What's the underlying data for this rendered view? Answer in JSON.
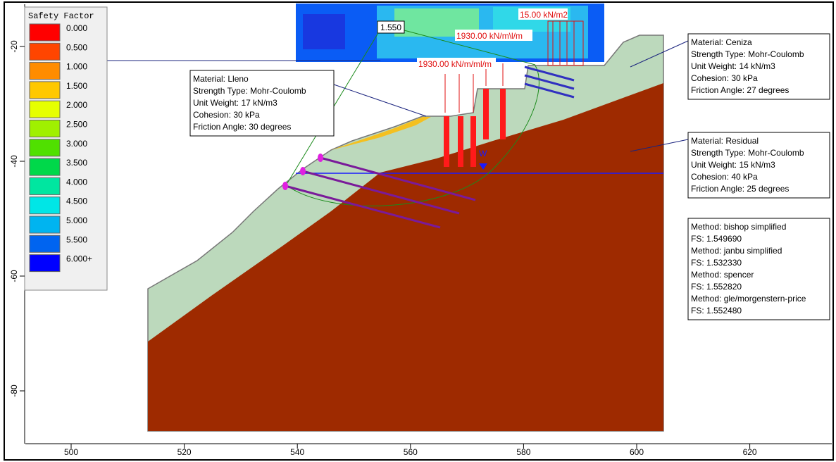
{
  "legend": {
    "title": "Safety Factor",
    "items": [
      {
        "label": "0.000",
        "color": "#ff0000"
      },
      {
        "label": "0.500",
        "color": "#ff4500"
      },
      {
        "label": "1.000",
        "color": "#ff8c00"
      },
      {
        "label": "1.500",
        "color": "#ffc800"
      },
      {
        "label": "2.000",
        "color": "#e6ff00"
      },
      {
        "label": "2.500",
        "color": "#a0f000"
      },
      {
        "label": "3.000",
        "color": "#50e000"
      },
      {
        "label": "3.500",
        "color": "#00d84a"
      },
      {
        "label": "4.000",
        "color": "#00e6a0"
      },
      {
        "label": "4.500",
        "color": "#00e6e6"
      },
      {
        "label": "5.000",
        "color": "#00b4f0"
      },
      {
        "label": "5.500",
        "color": "#0064f0"
      },
      {
        "label": "6.000+",
        "color": "#0000ff"
      }
    ]
  },
  "axes": {
    "x_ticks": [
      500,
      520,
      540,
      560,
      580,
      600,
      620
    ],
    "y_ticks": [
      -20,
      -40,
      -60,
      -80
    ]
  },
  "annotations": {
    "fs_label": "1.550",
    "load_top": "15.00 kN/m2",
    "load_mid": "1930.00 kN/m\\l/m",
    "load_low": "1930.00 kN/m/ml/m",
    "water": "W"
  },
  "materials": [
    {
      "lines": [
        "Material: Lleno",
        "Strength Type: Mohr-Coulomb",
        "Unit Weight: 17 kN/m3",
        "Cohesion: 30 kPa",
        "Friction Angle: 30 degrees"
      ]
    },
    {
      "lines": [
        "Material: Ceniza",
        "Strength Type: Mohr-Coulomb",
        "Unit Weight: 14 kN/m3",
        "Cohesion: 30 kPa",
        "Friction Angle: 27 degrees"
      ]
    },
    {
      "lines": [
        "Material: Residual",
        "Strength Type: Mohr-Coulomb",
        "Unit Weight: 15 kN/m3",
        "Cohesion: 40 kPa",
        "Friction Angle: 25 degrees"
      ]
    }
  ],
  "methods": {
    "lines": [
      "Method: bishop simplified",
      "FS: 1.549690",
      "Method: janbu simplified",
      "FS: 1.532330",
      "Method: spencer",
      "FS: 1.552820",
      "Method: gle/morgenstern-price",
      "FS: 1.552480"
    ]
  }
}
